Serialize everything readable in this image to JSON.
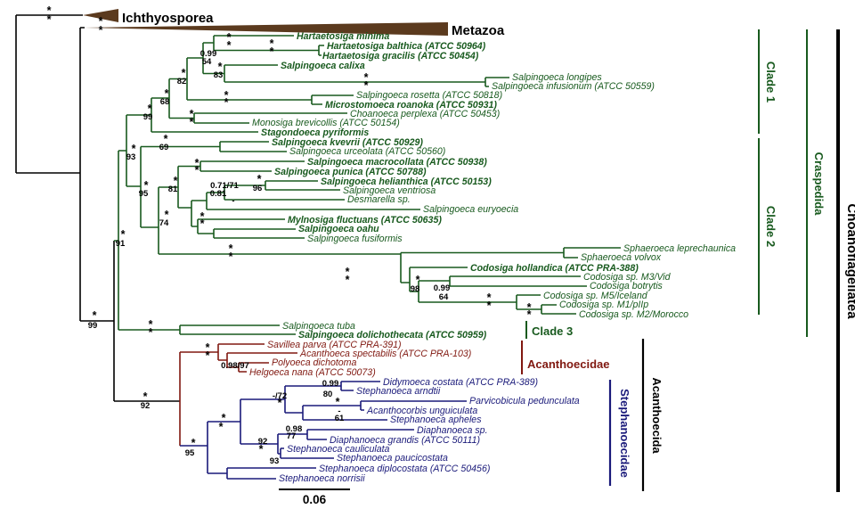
{
  "figure": {
    "type": "phylogenetic-tree",
    "scale_bar_label": "0.06"
  },
  "colors": {
    "craspedida_green": "#185a1e",
    "acanthoecidae_red": "#801810",
    "stephanoecidae_blue": "#1a1a7a",
    "outgroup_wedge_brown": "#5b3a1e",
    "backbone_black": "#000000"
  },
  "outgroups": [
    {
      "label": "Ichthyosporea"
    },
    {
      "label": "Metazoa"
    }
  ],
  "clades": [
    {
      "label": "Clade 1"
    },
    {
      "label": "Clade 2"
    },
    {
      "label": "Clade 3"
    },
    {
      "label": "Craspedida"
    },
    {
      "label": "Choanoflagellatea"
    },
    {
      "label": "Acanthoecidae"
    },
    {
      "label": "Stephanoecidae"
    },
    {
      "label": "Acanthoecida"
    }
  ],
  "taxa": [
    {
      "label": "Hartaetosiga minima",
      "group": "craspedida",
      "emphasis": "bold"
    },
    {
      "label": "Hartaetosiga balthica (ATCC 50964)",
      "group": "craspedida",
      "emphasis": "bold"
    },
    {
      "label": "Hartaetosiga gracilis (ATCC 50454)",
      "group": "craspedida",
      "emphasis": "bold"
    },
    {
      "label": "Salpingoeca calixa",
      "group": "craspedida",
      "emphasis": "bold"
    },
    {
      "label": "Salpingoeca longipes",
      "group": "craspedida",
      "emphasis": "regular"
    },
    {
      "label": "Salpingoeca infusionum (ATCC 50559)",
      "group": "craspedida",
      "emphasis": "regular"
    },
    {
      "label": "Salpingoeca rosetta (ATCC 50818)",
      "group": "craspedida",
      "emphasis": "regular"
    },
    {
      "label": "Microstomoeca roanoka (ATCC 50931)",
      "group": "craspedida",
      "emphasis": "bold"
    },
    {
      "label": "Choanoeca perplexa (ATCC 50453)",
      "group": "craspedida",
      "emphasis": "regular"
    },
    {
      "label": "Monosiga brevicollis (ATCC 50154)",
      "group": "craspedida",
      "emphasis": "regular"
    },
    {
      "label": "Stagondoeca pyriformis",
      "group": "craspedida",
      "emphasis": "bold"
    },
    {
      "label": "Salpingoeca kvevrii (ATCC 50929)",
      "group": "craspedida",
      "emphasis": "bold"
    },
    {
      "label": "Salpingoeca urceolata (ATCC 50560)",
      "group": "craspedida",
      "emphasis": "regular"
    },
    {
      "label": "Salpingoeca macrocollata (ATCC 50938)",
      "group": "craspedida",
      "emphasis": "bold"
    },
    {
      "label": "Salpingoeca punica (ATCC 50788)",
      "group": "craspedida",
      "emphasis": "bold"
    },
    {
      "label": "Salpingoeca helianthica (ATCC 50153)",
      "group": "craspedida",
      "emphasis": "bold"
    },
    {
      "label": "Salpingoeca ventriosa",
      "group": "craspedida",
      "emphasis": "regular"
    },
    {
      "label": "Desmarella sp.",
      "group": "craspedida",
      "emphasis": "regular"
    },
    {
      "label": "Salpingoeca euryoecia",
      "group": "craspedida",
      "emphasis": "regular"
    },
    {
      "label": "Mylnosiga fluctuans (ATCC 50635)",
      "group": "craspedida",
      "emphasis": "bold"
    },
    {
      "label": "Salpingoeca oahu",
      "group": "craspedida",
      "emphasis": "bold"
    },
    {
      "label": "Salpingoeca fusiformis",
      "group": "craspedida",
      "emphasis": "regular"
    },
    {
      "label": "Sphaeroeca leprechaunica",
      "group": "craspedida",
      "emphasis": "regular"
    },
    {
      "label": "Sphaeroeca volvox",
      "group": "craspedida",
      "emphasis": "regular"
    },
    {
      "label": "Codosiga hollandica (ATCC PRA-388)",
      "group": "craspedida",
      "emphasis": "bold"
    },
    {
      "label": "Codosiga sp. M3/Vid",
      "group": "craspedida",
      "emphasis": "regular"
    },
    {
      "label": "Codosiga botrytis",
      "group": "craspedida",
      "emphasis": "regular"
    },
    {
      "label": "Codosiga sp. M5/Iceland",
      "group": "craspedida",
      "emphasis": "regular"
    },
    {
      "label": "Codosiga sp. M1/pIIp",
      "group": "craspedida",
      "emphasis": "regular"
    },
    {
      "label": "Codosiga sp. M2/Morocco",
      "group": "craspedida",
      "emphasis": "regular"
    },
    {
      "label": "Salpingoeca tuba",
      "group": "craspedida",
      "emphasis": "regular"
    },
    {
      "label": "Salpingoeca dolichothecata (ATCC 50959)",
      "group": "craspedida",
      "emphasis": "bold"
    },
    {
      "label": "Savillea parva (ATCC PRA-391)",
      "group": "acanthoecidae",
      "emphasis": "regular"
    },
    {
      "label": "Acanthoeca spectabilis (ATCC PRA-103)",
      "group": "acanthoecidae",
      "emphasis": "regular"
    },
    {
      "label": "Polyoeca dichotoma",
      "group": "acanthoecidae",
      "emphasis": "regular"
    },
    {
      "label": "Helgoeca nana (ATCC 50073)",
      "group": "acanthoecidae",
      "emphasis": "regular"
    },
    {
      "label": "Didymoeca costata (ATCC PRA-389)",
      "group": "stephanoecidae",
      "emphasis": "regular"
    },
    {
      "label": "Stephanoeca arndtii",
      "group": "stephanoecidae",
      "emphasis": "regular"
    },
    {
      "label": "Parvicobicula pedunculata",
      "group": "stephanoecidae",
      "emphasis": "regular"
    },
    {
      "label": "Acanthocorbis unguiculata",
      "group": "stephanoecidae",
      "emphasis": "regular"
    },
    {
      "label": "Stephanoeca apheles",
      "group": "stephanoecidae",
      "emphasis": "regular"
    },
    {
      "label": "Diaphanoeca sp.",
      "group": "stephanoecidae",
      "emphasis": "regular"
    },
    {
      "label": "Diaphanoeca grandis (ATCC 50111)",
      "group": "stephanoecidae",
      "emphasis": "regular"
    },
    {
      "label": "Stephanoeca cauliculata",
      "group": "stephanoecidae",
      "emphasis": "regular"
    },
    {
      "label": "Stephanoeca paucicostata",
      "group": "stephanoecidae",
      "emphasis": "regular"
    },
    {
      "label": "Stephanoeca diplocostata (ATCC 50456)",
      "group": "stephanoecidae",
      "emphasis": "regular"
    },
    {
      "label": "Stephanoeca norrisii",
      "group": "stephanoecidae",
      "emphasis": "regular"
    }
  ],
  "supports": [
    "*",
    "*",
    "*",
    "*",
    "*",
    "*",
    "0.99",
    "54",
    "*",
    "*",
    "*",
    "83",
    "*",
    "*",
    "*",
    "82",
    "*",
    "68",
    "*",
    "99",
    "*",
    "*",
    "*",
    "*",
    "*",
    "93",
    "*",
    "69",
    "*",
    "95",
    "*",
    "*",
    "*",
    "81",
    "0.71/71",
    "*",
    "96",
    "0.81",
    "-",
    "*",
    "74",
    "*",
    "*",
    "*",
    "*",
    "*",
    "*",
    "*",
    "91",
    "*",
    "99",
    "*",
    "*",
    "*",
    "98",
    "0.99",
    "64",
    "*",
    "*",
    "*",
    "*",
    "*",
    "*",
    "0.98/97",
    "0.99",
    "80",
    "*",
    "92",
    "*",
    "95",
    "*",
    "*",
    "-/72",
    "*",
    "*",
    "-",
    "61",
    "0.98",
    "77",
    "92",
    "*",
    "93"
  ]
}
